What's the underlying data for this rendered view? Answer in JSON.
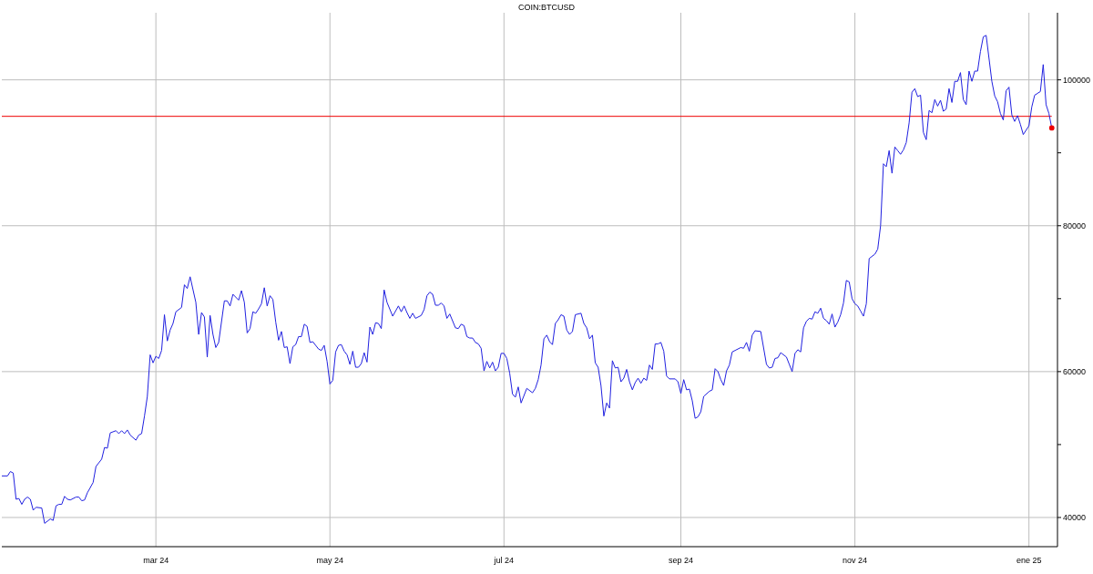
{
  "chart_data": {
    "type": "line",
    "title": "COIN:BTCUSD",
    "x": [
      "2024-01-07",
      "2024-01-09",
      "2024-01-10",
      "2024-01-11",
      "2024-01-12",
      "2024-01-13",
      "2024-01-14",
      "2024-01-15",
      "2024-01-16",
      "2024-01-17",
      "2024-01-18",
      "2024-01-19",
      "2024-01-21",
      "2024-01-22",
      "2024-01-23",
      "2024-01-24",
      "2024-01-25",
      "2024-01-26",
      "2024-01-27",
      "2024-01-28",
      "2024-01-29",
      "2024-01-30",
      "2024-01-31",
      "2024-02-02",
      "2024-02-03",
      "2024-02-04",
      "2024-02-05",
      "2024-02-06",
      "2024-02-08",
      "2024-02-09",
      "2024-02-11",
      "2024-02-12",
      "2024-02-13",
      "2024-02-14",
      "2024-02-16",
      "2024-02-17",
      "2024-02-18",
      "2024-02-19",
      "2024-02-20",
      "2024-02-21",
      "2024-02-23",
      "2024-02-24",
      "2024-02-25",
      "2024-02-26",
      "2024-02-27",
      "2024-02-28",
      "2024-02-29",
      "2024-03-01",
      "2024-03-02",
      "2024-03-03",
      "2024-03-04",
      "2024-03-05",
      "2024-03-06",
      "2024-03-07",
      "2024-03-08",
      "2024-03-10",
      "2024-03-11",
      "2024-03-12",
      "2024-03-13",
      "2024-03-15",
      "2024-03-16",
      "2024-03-17",
      "2024-03-18",
      "2024-03-19",
      "2024-03-20",
      "2024-03-21",
      "2024-03-22",
      "2024-03-23",
      "2024-03-25",
      "2024-03-26",
      "2024-03-27",
      "2024-03-28",
      "2024-03-30",
      "2024-03-31",
      "2024-04-01",
      "2024-04-02",
      "2024-04-03",
      "2024-04-04",
      "2024-04-05",
      "2024-04-06",
      "2024-04-07",
      "2024-04-08",
      "2024-04-09",
      "2024-04-10",
      "2024-04-11",
      "2024-04-12",
      "2024-04-13",
      "2024-04-14",
      "2024-04-15",
      "2024-04-16",
      "2024-04-17",
      "2024-04-18",
      "2024-04-19",
      "2024-04-20",
      "2024-04-21",
      "2024-04-22",
      "2024-04-23",
      "2024-04-24",
      "2024-04-25",
      "2024-04-26",
      "2024-04-27",
      "2024-04-28",
      "2024-04-29",
      "2024-04-30",
      "2024-05-01",
      "2024-05-02",
      "2024-05-03",
      "2024-05-04",
      "2024-05-05",
      "2024-05-06",
      "2024-05-07",
      "2024-05-08",
      "2024-05-09",
      "2024-05-10",
      "2024-05-11",
      "2024-05-12",
      "2024-05-13",
      "2024-05-14",
      "2024-05-15",
      "2024-05-16",
      "2024-05-17",
      "2024-05-18",
      "2024-05-19",
      "2024-05-20",
      "2024-05-21",
      "2024-05-23",
      "2024-05-25",
      "2024-05-26",
      "2024-05-27",
      "2024-05-28",
      "2024-05-29",
      "2024-05-30",
      "2024-05-31",
      "2024-06-02",
      "2024-06-03",
      "2024-06-04",
      "2024-06-05",
      "2024-06-06",
      "2024-06-07",
      "2024-06-08",
      "2024-06-09",
      "2024-06-10",
      "2024-06-11",
      "2024-06-12",
      "2024-06-14",
      "2024-06-15",
      "2024-06-16",
      "2024-06-17",
      "2024-06-18",
      "2024-06-19",
      "2024-06-20",
      "2024-06-21",
      "2024-06-22",
      "2024-06-23",
      "2024-06-24",
      "2024-06-25",
      "2024-06-26",
      "2024-06-27",
      "2024-06-28",
      "2024-06-29",
      "2024-06-30",
      "2024-07-01",
      "2024-07-02",
      "2024-07-03",
      "2024-07-04",
      "2024-07-05",
      "2024-07-06",
      "2024-07-07",
      "2024-07-09",
      "2024-07-11",
      "2024-07-12",
      "2024-07-13",
      "2024-07-14",
      "2024-07-15",
      "2024-07-16",
      "2024-07-17",
      "2024-07-18",
      "2024-07-19",
      "2024-07-20",
      "2024-07-21",
      "2024-07-22",
      "2024-07-23",
      "2024-07-24",
      "2024-07-25",
      "2024-07-26",
      "2024-07-28",
      "2024-07-29",
      "2024-07-30",
      "2024-07-31",
      "2024-08-01",
      "2024-08-02",
      "2024-08-03",
      "2024-08-04",
      "2024-08-05",
      "2024-08-06",
      "2024-08-07",
      "2024-08-08",
      "2024-08-09",
      "2024-08-10",
      "2024-08-11",
      "2024-08-12",
      "2024-08-13",
      "2024-08-14",
      "2024-08-15",
      "2024-08-16",
      "2024-08-17",
      "2024-08-18",
      "2024-08-19",
      "2024-08-20",
      "2024-08-21",
      "2024-08-22",
      "2024-08-23",
      "2024-08-24",
      "2024-08-25",
      "2024-08-26",
      "2024-08-27",
      "2024-08-28",
      "2024-08-30",
      "2024-08-31",
      "2024-09-01",
      "2024-09-02",
      "2024-09-03",
      "2024-09-04",
      "2024-09-05",
      "2024-09-06",
      "2024-09-07",
      "2024-09-08",
      "2024-09-09",
      "2024-09-11",
      "2024-09-12",
      "2024-09-13",
      "2024-09-14",
      "2024-09-15",
      "2024-09-16",
      "2024-09-17",
      "2024-09-18",
      "2024-09-19",
      "2024-09-20",
      "2024-09-22",
      "2024-09-23",
      "2024-09-24",
      "2024-09-25",
      "2024-09-26",
      "2024-09-27",
      "2024-09-29",
      "2024-10-01",
      "2024-10-02",
      "2024-10-03",
      "2024-10-04",
      "2024-10-05",
      "2024-10-06",
      "2024-10-08",
      "2024-10-09",
      "2024-10-10",
      "2024-10-11",
      "2024-10-12",
      "2024-10-13",
      "2024-10-14",
      "2024-10-15",
      "2024-10-16",
      "2024-10-17",
      "2024-10-18",
      "2024-10-19",
      "2024-10-20",
      "2024-10-21",
      "2024-10-22",
      "2024-10-23",
      "2024-10-24",
      "2024-10-25",
      "2024-10-26",
      "2024-10-27",
      "2024-10-28",
      "2024-10-29",
      "2024-10-30",
      "2024-10-31",
      "2024-11-01",
      "2024-11-02",
      "2024-11-03",
      "2024-11-04",
      "2024-11-05",
      "2024-11-06",
      "2024-11-08",
      "2024-11-09",
      "2024-11-10",
      "2024-11-11",
      "2024-11-12",
      "2024-11-13",
      "2024-11-14",
      "2024-11-15",
      "2024-11-16",
      "2024-11-17",
      "2024-11-18",
      "2024-11-19",
      "2024-11-20",
      "2024-11-21",
      "2024-11-22",
      "2024-11-23",
      "2024-11-24",
      "2024-11-25",
      "2024-11-26",
      "2024-11-27",
      "2024-11-28",
      "2024-11-29",
      "2024-11-30",
      "2024-12-01",
      "2024-12-02",
      "2024-12-03",
      "2024-12-04",
      "2024-12-05",
      "2024-12-06",
      "2024-12-07",
      "2024-12-08",
      "2024-12-09",
      "2024-12-10",
      "2024-12-11",
      "2024-12-12",
      "2024-12-13",
      "2024-12-14",
      "2024-12-15",
      "2024-12-16",
      "2024-12-17",
      "2024-12-19",
      "2024-12-20",
      "2024-12-21",
      "2024-12-22",
      "2024-12-23",
      "2024-12-24",
      "2024-12-25",
      "2024-12-26",
      "2024-12-27",
      "2024-12-28",
      "2024-12-29",
      "2024-12-30",
      "2025-01-01",
      "2025-01-02",
      "2025-01-03",
      "2025-01-05",
      "2025-01-06",
      "2025-01-07",
      "2025-01-08",
      "2025-01-09"
    ],
    "series": [
      {
        "color": "#2020e0",
        "values": [
          45700,
          45700,
          46300,
          46100,
          42500,
          42600,
          41800,
          42500,
          42800,
          42500,
          41000,
          41400,
          41300,
          39200,
          39500,
          39800,
          39600,
          41600,
          41800,
          41800,
          42900,
          42500,
          42400,
          42800,
          42800,
          42300,
          42400,
          43400,
          44800,
          47000,
          48000,
          49600,
          49500,
          51600,
          51900,
          51500,
          51900,
          51500,
          52000,
          51300,
          50600,
          51300,
          51500,
          53900,
          56600,
          62300,
          61200,
          62100,
          61800,
          62900,
          67800,
          64200,
          65700,
          66600,
          68200,
          68800,
          71900,
          71400,
          73000,
          69500,
          65100,
          68100,
          67500,
          62000,
          67700,
          65100,
          63300,
          64000,
          69700,
          69700,
          69000,
          70600,
          69800,
          71100,
          69500,
          65300,
          65900,
          68200,
          68000,
          68600,
          69300,
          71500,
          69000,
          70400,
          69900,
          66800,
          64300,
          65500,
          63300,
          63400,
          61100,
          63400,
          63700,
          64800,
          64800,
          66500,
          66200,
          64000,
          64100,
          63600,
          63100,
          62900,
          63600,
          61400,
          58300,
          58800,
          62700,
          63600,
          63700,
          62800,
          62300,
          61000,
          62800,
          60600,
          60600,
          61100,
          62600,
          61300,
          66100,
          65100,
          66700,
          66600,
          65900,
          71200,
          69500,
          67600,
          69000,
          68200,
          69000,
          68100,
          67300,
          68000,
          67300,
          67700,
          68500,
          70400,
          70900,
          70600,
          69100,
          69100,
          69400,
          69000,
          67300,
          67900,
          66000,
          65900,
          66500,
          66300,
          64800,
          64600,
          64600,
          64000,
          63800,
          63200,
          60100,
          61400,
          60500,
          61300,
          60100,
          60600,
          62500,
          62500,
          61800,
          59800,
          56900,
          56500,
          57900,
          55700,
          57700,
          57100,
          57700,
          58900,
          60900,
          64500,
          65000,
          64100,
          63700,
          66600,
          67100,
          67800,
          67600,
          65700,
          65100,
          65500,
          67800,
          68000,
          66600,
          66000,
          64500,
          65000,
          61200,
          60600,
          58100,
          53900,
          55700,
          55000,
          61500,
          60500,
          60600,
          58600,
          59100,
          60300,
          58600,
          57500,
          58500,
          59100,
          58400,
          59100,
          58800,
          60900,
          60300,
          63800,
          63800,
          64000,
          62800,
          59400,
          59000,
          59000,
          58600,
          57000,
          58900,
          57500,
          57600,
          56000,
          53600,
          53800,
          54500,
          56600,
          57300,
          57500,
          60400,
          60000,
          58900,
          58100,
          60100,
          60900,
          62700,
          62900,
          63300,
          63200,
          64000,
          62800,
          65000,
          65600,
          65500,
          61000,
          60500,
          60600,
          61800,
          61900,
          62600,
          62000,
          61000,
          60000,
          62500,
          63000,
          62700,
          66000,
          66900,
          67300,
          67200,
          68200,
          68000,
          68700,
          67300,
          67000,
          66500,
          67900,
          66100,
          66800,
          67800,
          69400,
          72500,
          72300,
          70000,
          69300,
          69000,
          68300,
          67600,
          69300,
          75500,
          76100,
          76800,
          80000,
          88500,
          88100,
          90300,
          87200,
          90800,
          90300,
          89800,
          90400,
          91400,
          94100,
          98300,
          98800,
          97700,
          97900,
          92800,
          91800,
          95800,
          95500,
          97300,
          96400,
          97200,
          95700,
          96000,
          98800,
          96900,
          99800,
          99800,
          101000,
          97300,
          96600,
          101200,
          99800,
          101200,
          101200,
          103900,
          105900,
          106100,
          99800,
          97800,
          97000,
          95400,
          94500,
          98500,
          99000,
          95200,
          94300,
          95100,
          93900,
          92500,
          93700,
          96300,
          97900,
          98400,
          102100,
          96600,
          95400,
          93400
        ]
      },
      {
        "type": "scatter",
        "x": [
          "2025-01-09"
        ],
        "values": [
          93400
        ],
        "color": "#ee0000",
        "marker": "circle"
      }
    ],
    "xlim": [
      "2024-01-07",
      "2025-01-11"
    ],
    "xticks": [
      {
        "value": "2024-03-01",
        "label": "mar 24"
      },
      {
        "value": "2024-05-01",
        "label": "may 24"
      },
      {
        "value": "2024-07-01",
        "label": "jul 24"
      },
      {
        "value": "2024-09-01",
        "label": "sep 24"
      },
      {
        "value": "2024-11-01",
        "label": "nov 24"
      },
      {
        "value": "2025-01-01",
        "label": "ene 25"
      }
    ],
    "ylim": [
      36000,
      109200
    ],
    "yticks": [
      40000,
      {
        "value": 50000,
        "label": null
      },
      60000,
      {
        "value": 70000,
        "label": null
      },
      80000,
      {
        "value": 90000,
        "label": null
      },
      100000
    ],
    "ref_lines": [
      {
        "axis": "y",
        "value": 95000,
        "color": "#ee0000"
      }
    ],
    "grid": true
  }
}
